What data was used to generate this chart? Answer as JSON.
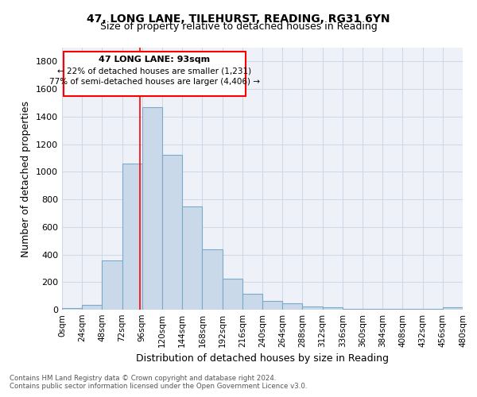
{
  "title1": "47, LONG LANE, TILEHURST, READING, RG31 6YN",
  "title2": "Size of property relative to detached houses in Reading",
  "xlabel": "Distribution of detached houses by size in Reading",
  "ylabel": "Number of detached properties",
  "bar_color": "#c9d9ea",
  "bar_edge_color": "#7aaac8",
  "grid_color": "#d0d8e8",
  "background_color": "#eef2f8",
  "bin_edges": [
    0,
    24,
    48,
    72,
    96,
    120,
    144,
    168,
    192,
    216,
    240,
    264,
    288,
    312,
    336,
    360,
    384,
    408,
    432,
    456,
    480
  ],
  "bar_heights": [
    12,
    32,
    358,
    1060,
    1470,
    1120,
    750,
    437,
    222,
    118,
    62,
    48,
    25,
    20,
    8,
    6,
    5,
    4,
    3,
    15
  ],
  "property_size": 93,
  "annotation_title": "47 LONG LANE: 93sqm",
  "annotation_line1": "← 22% of detached houses are smaller (1,231)",
  "annotation_line2": "77% of semi-detached houses are larger (4,406) →",
  "red_line_x": 93,
  "ylim": [
    0,
    1900
  ],
  "yticks": [
    0,
    200,
    400,
    600,
    800,
    1000,
    1200,
    1400,
    1600,
    1800
  ],
  "xtick_labels": [
    "0sqm",
    "24sqm",
    "48sqm",
    "72sqm",
    "96sqm",
    "120sqm",
    "144sqm",
    "168sqm",
    "192sqm",
    "216sqm",
    "240sqm",
    "264sqm",
    "288sqm",
    "312sqm",
    "336sqm",
    "360sqm",
    "384sqm",
    "408sqm",
    "432sqm",
    "456sqm",
    "480sqm"
  ],
  "footnote1": "Contains HM Land Registry data © Crown copyright and database right 2024.",
  "footnote2": "Contains public sector information licensed under the Open Government Licence v3.0."
}
